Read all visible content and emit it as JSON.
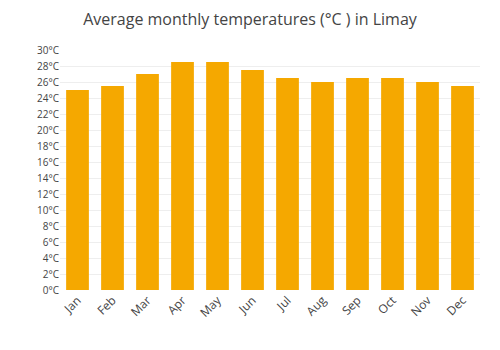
{
  "chart_data": {
    "type": "bar",
    "title": "Average monthly temperatures (°C ) in Limay",
    "categories": [
      "Jan",
      "Feb",
      "Mar",
      "Apr",
      "May",
      "Jun",
      "Jul",
      "Aug",
      "Sep",
      "Oct",
      "Nov",
      "Dec"
    ],
    "values": [
      25.0,
      25.5,
      27.0,
      28.5,
      28.5,
      27.5,
      26.5,
      26.0,
      26.5,
      26.5,
      26.0,
      25.5
    ],
    "color": "#F5A800",
    "ylim": [
      0,
      30
    ],
    "yticks": [
      {
        "value": 0,
        "label": "0°C"
      },
      {
        "value": 2,
        "label": "2°C"
      },
      {
        "value": 4,
        "label": "4°C"
      },
      {
        "value": 6,
        "label": "6°C"
      },
      {
        "value": 8,
        "label": "8°C"
      },
      {
        "value": 10,
        "label": "10°C"
      },
      {
        "value": 12,
        "label": "12°C"
      },
      {
        "value": 14,
        "label": "14°C"
      },
      {
        "value": 16,
        "label": "16°C"
      },
      {
        "value": 18,
        "label": "18°C"
      },
      {
        "value": 20,
        "label": "20°C"
      },
      {
        "value": 22,
        "label": "22°C"
      },
      {
        "value": 24,
        "label": "24°C"
      },
      {
        "value": 26,
        "label": "26°C"
      },
      {
        "value": 28,
        "label": "28°C"
      },
      {
        "value": 30,
        "label": "30°C"
      }
    ],
    "grid": true
  }
}
